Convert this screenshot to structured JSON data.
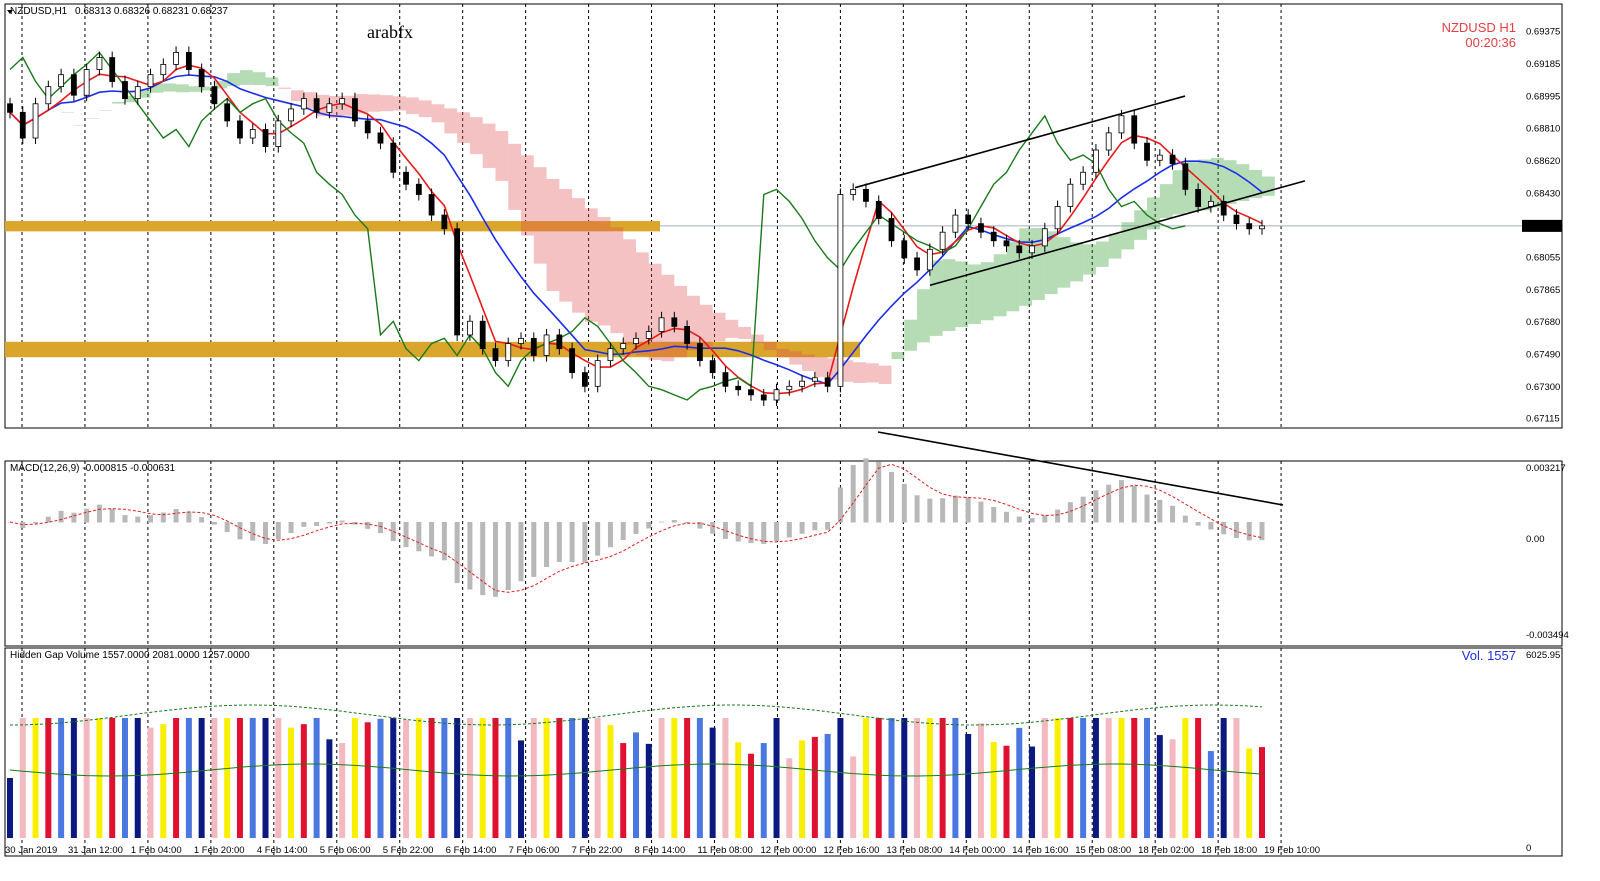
{
  "chart_data": [
    {
      "type": "candlestick",
      "symbol_header": "NZDUSD,H1",
      "ohlc_header": "0.68313 0.68326 0.68231 0.68237",
      "watermark": "arabfx",
      "symbol_label": "NZDUSD  H1",
      "timer": "00:20:36",
      "ylim": [
        0.67115,
        0.69375
      ],
      "price_ticks": [
        "0.69375",
        "0.69185",
        "0.68995",
        "0.68810",
        "0.68620",
        "0.68430",
        "0.68237",
        "0.68055",
        "0.67865",
        "0.67680",
        "0.67490",
        "0.67300",
        "0.67115"
      ],
      "price_tick_values": [
        0.69375,
        0.69185,
        0.68995,
        0.6881,
        0.6862,
        0.6843,
        0.68237,
        0.68055,
        0.67865,
        0.6768,
        0.6749,
        0.673,
        0.67115
      ],
      "current_price": 0.68237,
      "support_zones": [
        [
          0.68205,
          0.68265
        ],
        [
          0.6747,
          0.6756
        ]
      ],
      "x_ticks": [
        "30 Jan 2019",
        "31 Jan 12:00",
        "1 Feb 04:00",
        "1 Feb 20:00",
        "4 Feb 14:00",
        "5 Feb 06:00",
        "5 Feb 22:00",
        "6 Feb 14:00",
        "7 Feb 06:00",
        "7 Feb 22:00",
        "8 Feb 14:00",
        "11 Feb 08:00",
        "12 Feb 00:00",
        "12 Feb 16:00",
        "13 Feb 08:00",
        "14 Feb 00:00",
        "14 Feb 16:00",
        "15 Feb 08:00",
        "18 Feb 02:00",
        "18 Feb 18:00",
        "19 Feb 10:00"
      ],
      "close_series": [
        0.689,
        0.6875,
        0.6895,
        0.6905,
        0.6912,
        0.69,
        0.6915,
        0.6922,
        0.6908,
        0.6898,
        0.6905,
        0.6912,
        0.6918,
        0.6925,
        0.6915,
        0.6905,
        0.6895,
        0.6885,
        0.6875,
        0.688,
        0.687,
        0.6885,
        0.6892,
        0.6898,
        0.689,
        0.6895,
        0.6898,
        0.6885,
        0.6878,
        0.6872,
        0.6855,
        0.6848,
        0.6842,
        0.683,
        0.6822,
        0.676,
        0.6768,
        0.6752,
        0.6745,
        0.6755,
        0.6758,
        0.6748,
        0.676,
        0.6752,
        0.6738,
        0.673,
        0.6745,
        0.6752,
        0.6755,
        0.6758,
        0.6762,
        0.677,
        0.6765,
        0.6755,
        0.6745,
        0.6738,
        0.673,
        0.6728,
        0.6725,
        0.6722,
        0.6728,
        0.673,
        0.6733,
        0.6735,
        0.673,
        0.6842,
        0.6845,
        0.6838,
        0.6828,
        0.6815,
        0.6805,
        0.6798,
        0.681,
        0.682,
        0.683,
        0.6825,
        0.682,
        0.6815,
        0.6812,
        0.6808,
        0.6812,
        0.6822,
        0.6835,
        0.6848,
        0.6855,
        0.6868,
        0.6878,
        0.6888,
        0.6872,
        0.6862,
        0.6865,
        0.686,
        0.6845,
        0.6835,
        0.6838,
        0.683,
        0.6825,
        0.6822,
        0.68237
      ]
    },
    {
      "type": "histogram",
      "title": "MACD(12,26,9) -0.000815 -0.000631",
      "ticks": [
        "0.003217",
        "0.00",
        "-0.003494"
      ]
    },
    {
      "type": "bar",
      "title": "Hidden Gap Volume 1557.0000 2081.0000 1257.0000",
      "vol_label": "Vol.  1557",
      "ticks": [
        "6025.95",
        "0"
      ]
    }
  ]
}
